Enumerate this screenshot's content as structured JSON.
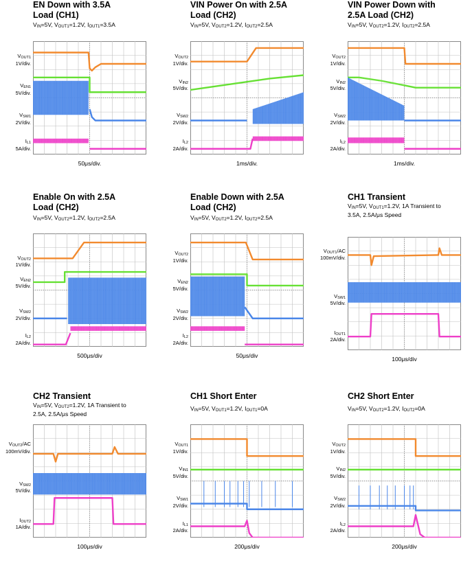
{
  "colors": {
    "orange": "#f28a2e",
    "green": "#66e033",
    "blue": "#4a86e8",
    "magenta": "#ee3fc8",
    "grid": "#bfbfbf",
    "frame": "#888888"
  },
  "panels": [
    {
      "key": "p1",
      "title": "EN Down with 3.5A\nLoad (CH1)",
      "cond": "V<IN>=5V, V<OUT1>=1.2V, I<OUT1>=3.5A",
      "tdiv": "50μs/div.",
      "ylabels": [
        {
          "text": "V<OUT1>\n1V/div.",
          "y": 0.16
        },
        {
          "text": "V<EN1>\n5V/div.",
          "y": 0.42
        },
        {
          "text": "V<SW1>\n2V/div.",
          "y": 0.68
        },
        {
          "text": "I<L1>\n5A/div.",
          "y": 0.91
        }
      ]
    },
    {
      "key": "p2",
      "title": "VIN Power On with 2.5A\nLoad (CH2)",
      "cond": "V<IN>=5V, V<OUT2>=1.2V, I<OUT2>=2.5A",
      "tdiv": "1ms/div.",
      "ylabels": [
        {
          "text": "V<OUT2>\n1V/div.",
          "y": 0.16
        },
        {
          "text": "V<IN2>\n5V/div.",
          "y": 0.38
        },
        {
          "text": "V<SW2>\n2V/div.",
          "y": 0.68
        },
        {
          "text": "I<L2>\n2A/div.",
          "y": 0.91
        }
      ]
    },
    {
      "key": "p3",
      "title": "VIN Power Down with\n2.5A Load (CH2)",
      "cond": "V<IN>=5V, V<OUT2>=1.2V, I<OUT2>=2.5A",
      "tdiv": "1ms/div.",
      "ylabels": [
        {
          "text": "V<OUT2>\n1V/div.",
          "y": 0.16
        },
        {
          "text": "V<IN2>\n5V/div.",
          "y": 0.38
        },
        {
          "text": "V<SW2>\n2V/div.",
          "y": 0.68
        },
        {
          "text": "I<L2>\n2A/div.",
          "y": 0.91
        }
      ]
    },
    {
      "key": "p4",
      "title": "Enable On with 2.5A\nLoad (CH2)",
      "cond": "V<IN>=5V, V<OUT2>=1.2V, I<OUT2>=2.5A",
      "tdiv": "500μs/div",
      "ylabels": [
        {
          "text": "V<OUT2>\n1V/div.",
          "y": 0.24
        },
        {
          "text": "V<EN2>\n5V/div.",
          "y": 0.43
        },
        {
          "text": "V<SW2>\n2V/div.",
          "y": 0.71
        },
        {
          "text": "I<L2>\n2A/div.",
          "y": 0.93
        }
      ]
    },
    {
      "key": "p5",
      "title": "Enable Down with 2.5A\nLoad (CH2)",
      "cond": "V<IN>=5V, V<OUT2>=1.2V, I<OUT2>=2.5A",
      "tdiv": "50μs/div",
      "ylabels": [
        {
          "text": "V<OUT2>\n1V/div.",
          "y": 0.2
        },
        {
          "text": "V<EN2>\n5V/div.",
          "y": 0.45
        },
        {
          "text": "V<SW2>\n2V/div.",
          "y": 0.71
        },
        {
          "text": "I<L2>\n2A/div.",
          "y": 0.93
        }
      ]
    },
    {
      "key": "p6",
      "title": "CH1 Transient",
      "cond": "V<IN>=5V, V<OUT1>=1.2V, 1A Transient to\n3.5A, 2.5A/μs Speed",
      "tdiv": "100μs/div",
      "ylabels": [
        {
          "text": "V<OUT1>/AC\n100mV/div.",
          "y": 0.15
        },
        {
          "text": "V<SW1>\n5V/div.",
          "y": 0.55
        },
        {
          "text": "I<OUT1>\n2A/div.",
          "y": 0.87
        }
      ]
    },
    {
      "key": "p7",
      "title": "CH2 Transient",
      "cond": "V<IN>=5V, V<OUT2>=1.2V, 1A Transient to\n2.5A, 2.5A/μs Speed",
      "tdiv": "100μs/div",
      "ylabels": [
        {
          "text": "V<OUT2>/AC\n100mV/div.",
          "y": 0.2
        },
        {
          "text": "V<SW2>\n5V/div.",
          "y": 0.55
        },
        {
          "text": "I<OUT2>\n1A/div.",
          "y": 0.87
        }
      ]
    },
    {
      "key": "p8",
      "title": "CH1 Short Enter",
      "cond": "V<IN>=5V, V<OUT1>=1.2V, I<OUT1>=0A",
      "tdiv": "200μs/div",
      "ylabels": [
        {
          "text": "V<OUT1>\n1V/div.",
          "y": 0.2
        },
        {
          "text": "V<IN1>\n5V/div.",
          "y": 0.42
        },
        {
          "text": "V<SW1>\n2V/div.",
          "y": 0.68
        },
        {
          "text": "I<L1>\n2A/div.",
          "y": 0.9
        }
      ]
    },
    {
      "key": "p9",
      "title": "CH2 Short Enter",
      "cond": "V<IN>=5V, V<OUT2>=1.2V, I<OUT2>=0A",
      "tdiv": "200μs/div",
      "ylabels": [
        {
          "text": "V<OUT2>\n1V/div.",
          "y": 0.2
        },
        {
          "text": "V<IN2>\n5V/div.",
          "y": 0.42
        },
        {
          "text": "V<SW2>\n2V/div.",
          "y": 0.68
        },
        {
          "text": "I<L2>\n2A/div.",
          "y": 0.9
        }
      ]
    }
  ],
  "chart_data": [
    {
      "type": "line",
      "panel": "p1",
      "x_divisions": 10,
      "y_divisions": 8,
      "trigger": 0.5,
      "series": [
        {
          "color": "orange",
          "points": [
            [
              0,
              0.9
            ],
            [
              0.49,
              0.9
            ],
            [
              0.5,
              0.76
            ],
            [
              0.52,
              0.74
            ],
            [
              0.55,
              0.77
            ],
            [
              0.6,
              0.8
            ],
            [
              1,
              0.8
            ]
          ]
        },
        {
          "color": "green",
          "points": [
            [
              0,
              0.68
            ],
            [
              0.5,
              0.68
            ],
            [
              0.5,
              0.55
            ],
            [
              1,
              0.55
            ]
          ]
        },
        {
          "color": "blue",
          "band": [
            [
              0,
              0.35
            ],
            [
              0.49,
              0.65
            ]
          ],
          "points": [
            [
              0.5,
              0.4
            ],
            [
              0.52,
              0.33
            ],
            [
              0.55,
              0.3
            ],
            [
              1,
              0.3
            ]
          ]
        },
        {
          "color": "magenta",
          "band": [
            [
              0,
              0.1
            ],
            [
              0.49,
              0.14
            ]
          ],
          "points": [
            [
              0.5,
              0.05
            ],
            [
              1,
              0.05
            ]
          ]
        }
      ]
    },
    {
      "type": "line",
      "panel": "p2",
      "x_divisions": 10,
      "y_divisions": 8,
      "trigger": 0.5,
      "series": [
        {
          "color": "orange",
          "points": [
            [
              0,
              0.82
            ],
            [
              0.5,
              0.82
            ],
            [
              0.58,
              0.94
            ],
            [
              1,
              0.94
            ]
          ]
        },
        {
          "color": "green",
          "points": [
            [
              0,
              0.57
            ],
            [
              0.35,
              0.62
            ],
            [
              0.7,
              0.67
            ],
            [
              1,
              0.7
            ]
          ]
        },
        {
          "color": "blue",
          "points": [
            [
              0,
              0.3
            ],
            [
              0.5,
              0.3
            ]
          ],
          "band": [
            [
              0.55,
              0.27
            ],
            [
              1,
              0.55
            ]
          ],
          "band_start": [
            0.55,
            0.4
          ]
        },
        {
          "color": "magenta",
          "points": [
            [
              0,
              0.05
            ],
            [
              0.53,
              0.05
            ],
            [
              0.55,
              0.14
            ]
          ],
          "band": [
            [
              0.55,
              0.12
            ],
            [
              1,
              0.16
            ]
          ]
        }
      ]
    },
    {
      "type": "line",
      "panel": "p3",
      "x_divisions": 10,
      "y_divisions": 8,
      "trigger": 0.5,
      "series": [
        {
          "color": "orange",
          "points": [
            [
              0,
              0.94
            ],
            [
              0.5,
              0.94
            ],
            [
              0.51,
              0.8
            ],
            [
              1,
              0.8
            ]
          ]
        },
        {
          "color": "green",
          "points": [
            [
              0,
              0.68
            ],
            [
              0.1,
              0.68
            ],
            [
              0.3,
              0.65
            ],
            [
              0.5,
              0.61
            ],
            [
              0.6,
              0.59
            ],
            [
              1,
              0.59
            ]
          ]
        },
        {
          "color": "blue",
          "band": [
            [
              0,
              0.3
            ],
            [
              0.5,
              0.68
            ]
          ],
          "band_end": [
            0.5,
            0.43
          ],
          "points": [
            [
              0.5,
              0.3
            ],
            [
              1,
              0.3
            ]
          ]
        },
        {
          "color": "magenta",
          "band": [
            [
              0,
              0.1
            ],
            [
              0.5,
              0.15
            ]
          ],
          "points": [
            [
              0.5,
              0.05
            ],
            [
              1,
              0.05
            ]
          ]
        }
      ]
    },
    {
      "type": "line",
      "panel": "p4",
      "x_divisions": 10,
      "y_divisions": 8,
      "trigger": 0.5,
      "series": [
        {
          "color": "orange",
          "points": [
            [
              0,
              0.78
            ],
            [
              0.35,
              0.78
            ],
            [
              0.45,
              0.92
            ],
            [
              1,
              0.92
            ]
          ]
        },
        {
          "color": "green",
          "points": [
            [
              0,
              0.57
            ],
            [
              0.28,
              0.57
            ],
            [
              0.28,
              0.66
            ],
            [
              1,
              0.66
            ]
          ]
        },
        {
          "color": "blue",
          "points": [
            [
              0,
              0.25
            ],
            [
              0.3,
              0.25
            ]
          ],
          "band": [
            [
              0.31,
              0.2
            ],
            [
              1,
              0.61
            ]
          ]
        },
        {
          "color": "magenta",
          "points": [
            [
              0,
              0.02
            ],
            [
              0.29,
              0.02
            ],
            [
              0.33,
              0.12
            ]
          ],
          "band": [
            [
              0.33,
              0.14
            ],
            [
              1,
              0.18
            ]
          ]
        }
      ]
    },
    {
      "type": "line",
      "panel": "p5",
      "x_divisions": 10,
      "y_divisions": 8,
      "trigger": 0.5,
      "series": [
        {
          "color": "orange",
          "points": [
            [
              0,
              0.92
            ],
            [
              0.49,
              0.92
            ],
            [
              0.55,
              0.77
            ],
            [
              1,
              0.77
            ]
          ]
        },
        {
          "color": "green",
          "points": [
            [
              0,
              0.64
            ],
            [
              0.5,
              0.64
            ],
            [
              0.5,
              0.54
            ],
            [
              1,
              0.54
            ]
          ]
        },
        {
          "color": "blue",
          "band": [
            [
              0,
              0.27
            ],
            [
              0.48,
              0.62
            ]
          ],
          "points": [
            [
              0.48,
              0.35
            ],
            [
              0.55,
              0.25
            ],
            [
              1,
              0.25
            ]
          ]
        },
        {
          "color": "magenta",
          "band": [
            [
              0,
              0.14
            ],
            [
              0.48,
              0.18
            ]
          ],
          "points": [
            [
              0.48,
              0.02
            ],
            [
              1,
              0.02
            ]
          ]
        }
      ]
    },
    {
      "type": "line",
      "panel": "p6",
      "x_divisions": 10,
      "y_divisions": 8,
      "trigger": 0.5,
      "series": [
        {
          "color": "orange",
          "points": [
            [
              0,
              0.84
            ],
            [
              0.2,
              0.84
            ],
            [
              0.21,
              0.75
            ],
            [
              0.23,
              0.83
            ],
            [
              0.8,
              0.84
            ],
            [
              0.81,
              0.9
            ],
            [
              0.83,
              0.84
            ],
            [
              1,
              0.84
            ]
          ]
        },
        {
          "color": "blue",
          "band": [
            [
              0,
              0.42
            ],
            [
              1,
              0.6
            ]
          ]
        },
        {
          "color": "magenta",
          "points": [
            [
              0,
              0.12
            ],
            [
              0.2,
              0.12
            ],
            [
              0.21,
              0.32
            ],
            [
              0.8,
              0.32
            ],
            [
              0.81,
              0.12
            ],
            [
              1,
              0.12
            ]
          ]
        }
      ]
    },
    {
      "type": "line",
      "panel": "p7",
      "x_divisions": 10,
      "y_divisions": 8,
      "trigger": 0.5,
      "series": [
        {
          "color": "orange",
          "points": [
            [
              0,
              0.74
            ],
            [
              0.18,
              0.74
            ],
            [
              0.2,
              0.67
            ],
            [
              0.22,
              0.74
            ],
            [
              0.7,
              0.74
            ],
            [
              0.72,
              0.8
            ],
            [
              0.75,
              0.74
            ],
            [
              1,
              0.74
            ]
          ]
        },
        {
          "color": "blue",
          "band": [
            [
              0,
              0.38
            ],
            [
              1,
              0.57
            ]
          ]
        },
        {
          "color": "magenta",
          "points": [
            [
              0,
              0.12
            ],
            [
              0.18,
              0.12
            ],
            [
              0.19,
              0.35
            ],
            [
              0.7,
              0.35
            ],
            [
              0.71,
              0.12
            ],
            [
              1,
              0.12
            ]
          ]
        }
      ]
    },
    {
      "type": "line",
      "panel": "p8",
      "x_divisions": 10,
      "y_divisions": 8,
      "trigger": 0.5,
      "series": [
        {
          "color": "orange",
          "points": [
            [
              0,
              0.87
            ],
            [
              0.5,
              0.87
            ],
            [
              0.5,
              0.72
            ],
            [
              1,
              0.72
            ]
          ]
        },
        {
          "color": "green",
          "points": [
            [
              0,
              0.6
            ],
            [
              1,
              0.6
            ]
          ]
        },
        {
          "color": "blue",
          "points": [
            [
              0,
              0.3
            ],
            [
              0.5,
              0.3
            ],
            [
              0.5,
              0.25
            ],
            [
              1,
              0.25
            ]
          ],
          "spikes": [
            0.12,
            0.22,
            0.3,
            0.35,
            0.42,
            0.47,
            0.52,
            0.63,
            0.75,
            0.9
          ],
          "spike_amp": 0.2
        },
        {
          "color": "magenta",
          "points": [
            [
              0,
              0.1
            ],
            [
              0.48,
              0.1
            ],
            [
              0.5,
              0.15
            ],
            [
              0.52,
              0.04
            ],
            [
              0.55,
              0
            ],
            [
              1,
              0
            ]
          ]
        }
      ]
    },
    {
      "type": "line",
      "panel": "p9",
      "x_divisions": 10,
      "y_divisions": 8,
      "trigger": 0.5,
      "series": [
        {
          "color": "orange",
          "points": [
            [
              0,
              0.87
            ],
            [
              0.6,
              0.87
            ],
            [
              0.6,
              0.72
            ],
            [
              1,
              0.72
            ]
          ]
        },
        {
          "color": "green",
          "points": [
            [
              0,
              0.6
            ],
            [
              1,
              0.6
            ]
          ]
        },
        {
          "color": "blue",
          "points": [
            [
              0,
              0.28
            ],
            [
              0.6,
              0.28
            ],
            [
              0.6,
              0.24
            ],
            [
              1,
              0.24
            ]
          ],
          "spikes": [
            0.1,
            0.2,
            0.28,
            0.35,
            0.42,
            0.5,
            0.55,
            0.58
          ],
          "spike_amp": 0.18
        },
        {
          "color": "magenta",
          "points": [
            [
              0,
              0.1
            ],
            [
              0.58,
              0.1
            ],
            [
              0.6,
              0.2
            ],
            [
              0.64,
              0.03
            ],
            [
              0.68,
              0
            ],
            [
              1,
              0
            ]
          ]
        }
      ]
    }
  ]
}
